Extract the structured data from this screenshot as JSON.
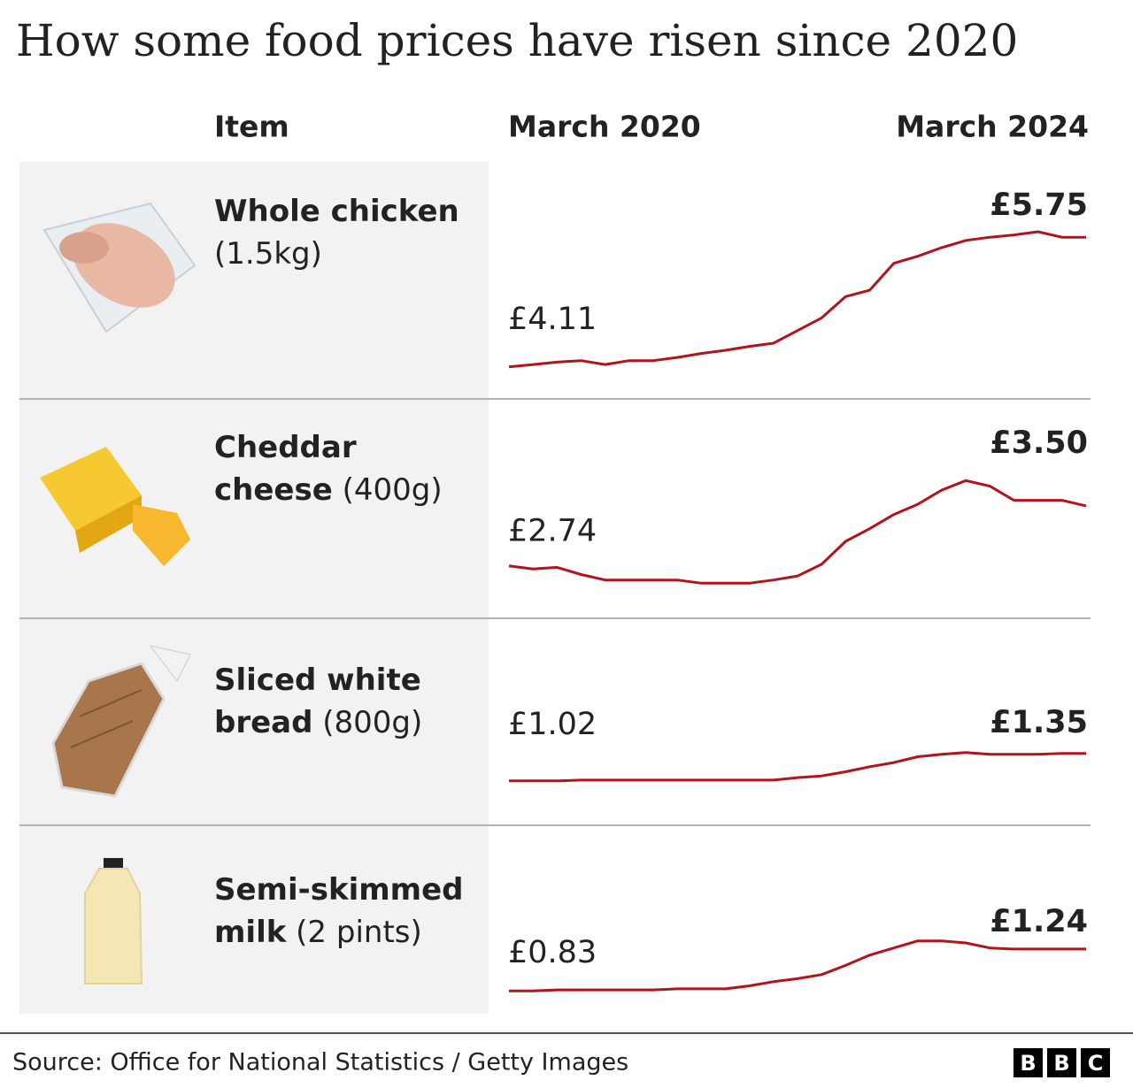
{
  "title": "How some food prices have risen since 2020",
  "columns": {
    "item": "Item",
    "start": "March 2020",
    "end": "March 2024"
  },
  "chart_data": {
    "type": "line",
    "color": "#b5121b",
    "series": [
      {
        "name": "Whole chicken",
        "detail": "(1.5kg)",
        "ylim": [
          3.94,
          6.48
        ],
        "values": [
          4.11,
          4.14,
          4.17,
          4.19,
          4.14,
          4.19,
          4.19,
          4.23,
          4.28,
          4.32,
          4.37,
          4.41,
          4.57,
          4.73,
          5.0,
          5.08,
          5.42,
          5.51,
          5.62,
          5.71,
          5.75,
          5.78,
          5.82,
          5.75,
          5.75
        ],
        "value_labels": [
          "£4.11",
          null,
          null,
          null,
          null,
          null,
          null,
          null,
          null,
          null,
          null,
          null,
          null,
          null,
          null,
          null,
          null,
          null,
          null,
          null,
          null,
          null,
          null,
          null,
          "£5.75"
        ]
      },
      {
        "name": "Cheddar cheese",
        "detail": "(400g)",
        "ylim": [
          2.31,
          4.62
        ],
        "values": [
          2.74,
          2.7,
          2.72,
          2.63,
          2.56,
          2.56,
          2.56,
          2.56,
          2.52,
          2.52,
          2.52,
          2.56,
          2.61,
          2.76,
          3.05,
          3.21,
          3.39,
          3.52,
          3.7,
          3.82,
          3.75,
          3.57,
          3.57,
          3.57,
          3.5
        ],
        "value_labels": [
          "£2.74",
          null,
          null,
          null,
          null,
          null,
          null,
          null,
          null,
          null,
          null,
          null,
          null,
          null,
          null,
          null,
          null,
          null,
          null,
          null,
          null,
          null,
          null,
          null,
          "£3.50"
        ]
      },
      {
        "name": "Sliced white bread",
        "detail": "(800g)",
        "ylim": [
          0.71,
          2.75
        ],
        "values": [
          1.02,
          1.02,
          1.02,
          1.03,
          1.03,
          1.03,
          1.03,
          1.03,
          1.03,
          1.03,
          1.03,
          1.03,
          1.06,
          1.08,
          1.13,
          1.19,
          1.24,
          1.31,
          1.34,
          1.36,
          1.34,
          1.34,
          1.34,
          1.35,
          1.35
        ],
        "value_labels": [
          "£1.02",
          null,
          null,
          null,
          null,
          null,
          null,
          null,
          null,
          null,
          null,
          null,
          null,
          null,
          null,
          null,
          null,
          null,
          null,
          null,
          null,
          null,
          null,
          null,
          "£1.35"
        ]
      },
      {
        "name": "Semi-skimmed milk",
        "detail": "(2 pints)",
        "ylim": [
          0.78,
          2.27
        ],
        "values": [
          0.83,
          0.83,
          0.84,
          0.84,
          0.84,
          0.84,
          0.84,
          0.85,
          0.85,
          0.85,
          0.88,
          0.92,
          0.95,
          0.99,
          1.08,
          1.18,
          1.25,
          1.32,
          1.32,
          1.3,
          1.25,
          1.24,
          1.24,
          1.24,
          1.24
        ],
        "value_labels": [
          "£0.83",
          null,
          null,
          null,
          null,
          null,
          null,
          null,
          null,
          null,
          null,
          null,
          null,
          null,
          null,
          null,
          null,
          null,
          null,
          null,
          null,
          null,
          null,
          null,
          "£1.24"
        ]
      }
    ]
  },
  "source": "Source: Office for National Statistics / Getty Images",
  "logo": [
    "B",
    "B",
    "C"
  ]
}
